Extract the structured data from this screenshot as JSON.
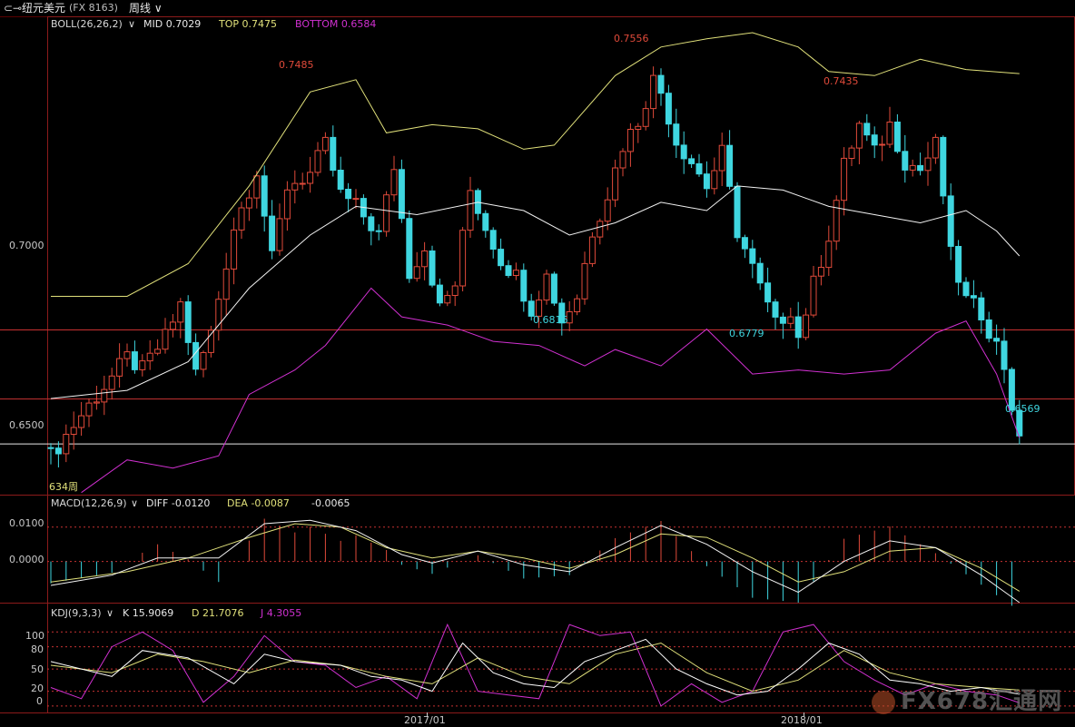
{
  "header": {
    "back_icon": "back-arrow-icon",
    "instrument": "纽元美元",
    "code": "(FX 8163)",
    "period": "周线",
    "chevron_icon": "chevron-down-icon"
  },
  "colors": {
    "background": "#000000",
    "up": "#e04a3a",
    "down": "#3fd6e0",
    "mid_line": "#f2f2f2",
    "top_line": "#e0e07a",
    "bottom_line": "#d030d0",
    "grid_red": "#c83232",
    "k_line": "#ffffff",
    "d_line": "#e0e07a",
    "j_line": "#d030d0"
  },
  "boll_legend": {
    "name": "BOLL(26,26,2)",
    "mid": "MID 0.7029",
    "top": "TOP 0.7475",
    "bottom": "BOTTOM 0.6584"
  },
  "macd_legend": {
    "name": "MACD(12,26,9)",
    "diff": "DIFF -0.0120",
    "dea": "DEA -0.0087",
    "macd": "-0.0065"
  },
  "kdj_legend": {
    "name": "KDJ(9,3,3)",
    "k": "K 15.9069",
    "d": "D 21.7076",
    "j": "J 4.3055"
  },
  "price_ticks": [
    "0.7000",
    "0.6500"
  ],
  "macd_ticks": [
    "0.0100",
    "0.0000"
  ],
  "kdj_ticks": [
    "100",
    "80",
    "50",
    "20",
    "0"
  ],
  "time_ticks": [
    "2017/01",
    "2018/01"
  ],
  "annotations": [
    {
      "text": "0.7485",
      "kind": "high"
    },
    {
      "text": "0.7556",
      "kind": "high"
    },
    {
      "text": "0.7435",
      "kind": "high"
    },
    {
      "text": "0.6816",
      "kind": "low"
    },
    {
      "text": "0.6779",
      "kind": "low"
    },
    {
      "text": "0.6569",
      "kind": "low"
    }
  ],
  "corner_label": "634周",
  "watermark": "FX678汇通网",
  "chart_data": {
    "type": "candlestick",
    "series_count": 128,
    "ylim": [
      0.6445,
      0.7615
    ],
    "horizontal_levels": [
      0.6848,
      0.6679,
      0.6569
    ],
    "close_path": [
      [
        0,
        0.654
      ],
      [
        4,
        0.664
      ],
      [
        10,
        0.678
      ],
      [
        12,
        0.675
      ],
      [
        15,
        0.683
      ],
      [
        17,
        0.691
      ],
      [
        19,
        0.674
      ],
      [
        21,
        0.684
      ],
      [
        24,
        0.71
      ],
      [
        27,
        0.724
      ],
      [
        29,
        0.702
      ],
      [
        31,
        0.72
      ],
      [
        34,
        0.723
      ],
      [
        36,
        0.73
      ],
      [
        38,
        0.718
      ],
      [
        40,
        0.715
      ],
      [
        43,
        0.708
      ],
      [
        45,
        0.725
      ],
      [
        47,
        0.699
      ],
      [
        49,
        0.705
      ],
      [
        51,
        0.69
      ],
      [
        53,
        0.696
      ],
      [
        55,
        0.719
      ],
      [
        57,
        0.71
      ],
      [
        59,
        0.702
      ],
      [
        61,
        0.698
      ],
      [
        63,
        0.69
      ],
      [
        65,
        0.698
      ],
      [
        67,
        0.687
      ],
      [
        69,
        0.693
      ],
      [
        71,
        0.709
      ],
      [
        73,
        0.718
      ],
      [
        75,
        0.73
      ],
      [
        77,
        0.736
      ],
      [
        79,
        0.746
      ],
      [
        80,
        0.743
      ],
      [
        82,
        0.731
      ],
      [
        84,
        0.726
      ],
      [
        86,
        0.72
      ],
      [
        88,
        0.728
      ],
      [
        90,
        0.709
      ],
      [
        92,
        0.7
      ],
      [
        93,
        0.695
      ],
      [
        95,
        0.686
      ],
      [
        97,
        0.69
      ],
      [
        98,
        0.683
      ],
      [
        100,
        0.696
      ],
      [
        102,
        0.708
      ],
      [
        104,
        0.725
      ],
      [
        106,
        0.735
      ],
      [
        108,
        0.728
      ],
      [
        110,
        0.735
      ],
      [
        112,
        0.726
      ],
      [
        114,
        0.724
      ],
      [
        116,
        0.73
      ],
      [
        117,
        0.718
      ],
      [
        118,
        0.703
      ],
      [
        120,
        0.692
      ],
      [
        122,
        0.689
      ],
      [
        124,
        0.681
      ],
      [
        125,
        0.676
      ],
      [
        127,
        0.6569
      ]
    ],
    "mid_path": [
      [
        0,
        0.668
      ],
      [
        10,
        0.67
      ],
      [
        18,
        0.677
      ],
      [
        26,
        0.695
      ],
      [
        34,
        0.708
      ],
      [
        40,
        0.715
      ],
      [
        48,
        0.713
      ],
      [
        56,
        0.716
      ],
      [
        62,
        0.714
      ],
      [
        68,
        0.708
      ],
      [
        74,
        0.711
      ],
      [
        80,
        0.716
      ],
      [
        86,
        0.714
      ],
      [
        90,
        0.72
      ],
      [
        96,
        0.719
      ],
      [
        102,
        0.715
      ],
      [
        108,
        0.713
      ],
      [
        114,
        0.711
      ],
      [
        120,
        0.714
      ],
      [
        124,
        0.709
      ],
      [
        127,
        0.7029
      ]
    ],
    "top_path": [
      [
        0,
        0.693
      ],
      [
        10,
        0.693
      ],
      [
        18,
        0.701
      ],
      [
        26,
        0.72
      ],
      [
        34,
        0.743
      ],
      [
        40,
        0.746
      ],
      [
        44,
        0.733
      ],
      [
        50,
        0.735
      ],
      [
        56,
        0.734
      ],
      [
        62,
        0.729
      ],
      [
        66,
        0.73
      ],
      [
        74,
        0.747
      ],
      [
        80,
        0.754
      ],
      [
        86,
        0.756
      ],
      [
        92,
        0.7575
      ],
      [
        98,
        0.754
      ],
      [
        102,
        0.748
      ],
      [
        108,
        0.747
      ],
      [
        114,
        0.751
      ],
      [
        120,
        0.7485
      ],
      [
        127,
        0.7475
      ]
    ],
    "bottom_path": [
      [
        4,
        0.645
      ],
      [
        10,
        0.653
      ],
      [
        16,
        0.651
      ],
      [
        22,
        0.654
      ],
      [
        26,
        0.669
      ],
      [
        32,
        0.675
      ],
      [
        36,
        0.681
      ],
      [
        42,
        0.695
      ],
      [
        46,
        0.688
      ],
      [
        52,
        0.686
      ],
      [
        58,
        0.682
      ],
      [
        64,
        0.681
      ],
      [
        70,
        0.676
      ],
      [
        74,
        0.68
      ],
      [
        80,
        0.676
      ],
      [
        86,
        0.685
      ],
      [
        92,
        0.674
      ],
      [
        98,
        0.675
      ],
      [
        104,
        0.674
      ],
      [
        110,
        0.675
      ],
      [
        116,
        0.684
      ],
      [
        120,
        0.687
      ],
      [
        124,
        0.674
      ],
      [
        127,
        0.6584
      ]
    ],
    "macd": {
      "ylim": [
        -0.0115,
        0.0155
      ],
      "diff_path": [
        [
          0,
          -0.007
        ],
        [
          8,
          -0.004
        ],
        [
          14,
          0.001
        ],
        [
          22,
          0.001
        ],
        [
          28,
          0.011
        ],
        [
          34,
          0.012
        ],
        [
          40,
          0.009
        ],
        [
          46,
          0.002
        ],
        [
          50,
          -0.0005
        ],
        [
          56,
          0.003
        ],
        [
          62,
          -0.001
        ],
        [
          68,
          -0.003
        ],
        [
          74,
          0.004
        ],
        [
          80,
          0.0105
        ],
        [
          86,
          0.005
        ],
        [
          92,
          -0.003
        ],
        [
          98,
          -0.009
        ],
        [
          104,
          0.0
        ],
        [
          110,
          0.006
        ],
        [
          116,
          0.004
        ],
        [
          122,
          -0.004
        ],
        [
          127,
          -0.012
        ]
      ],
      "dea_path": [
        [
          0,
          -0.006
        ],
        [
          10,
          -0.003
        ],
        [
          18,
          0.001
        ],
        [
          26,
          0.007
        ],
        [
          32,
          0.011
        ],
        [
          38,
          0.01
        ],
        [
          44,
          0.004
        ],
        [
          50,
          0.001
        ],
        [
          56,
          0.003
        ],
        [
          62,
          0.001
        ],
        [
          68,
          -0.002
        ],
        [
          74,
          0.002
        ],
        [
          80,
          0.008
        ],
        [
          86,
          0.007
        ],
        [
          92,
          0.001
        ],
        [
          98,
          -0.006
        ],
        [
          104,
          -0.003
        ],
        [
          110,
          0.003
        ],
        [
          116,
          0.004
        ],
        [
          122,
          -0.002
        ],
        [
          127,
          -0.0087
        ]
      ]
    },
    "kdj": {
      "ylim": [
        -5,
        115
      ],
      "k_path": [
        [
          0,
          60
        ],
        [
          8,
          40
        ],
        [
          12,
          75
        ],
        [
          18,
          65
        ],
        [
          24,
          30
        ],
        [
          28,
          70
        ],
        [
          32,
          60
        ],
        [
          38,
          55
        ],
        [
          42,
          40
        ],
        [
          46,
          35
        ],
        [
          50,
          20
        ],
        [
          54,
          85
        ],
        [
          58,
          45
        ],
        [
          62,
          30
        ],
        [
          66,
          25
        ],
        [
          70,
          60
        ],
        [
          74,
          75
        ],
        [
          78,
          90
        ],
        [
          82,
          50
        ],
        [
          86,
          30
        ],
        [
          90,
          15
        ],
        [
          94,
          20
        ],
        [
          98,
          50
        ],
        [
          102,
          85
        ],
        [
          106,
          70
        ],
        [
          110,
          35
        ],
        [
          114,
          30
        ],
        [
          118,
          20
        ],
        [
          122,
          25
        ],
        [
          127,
          15.9
        ]
      ],
      "d_path": [
        [
          0,
          55
        ],
        [
          8,
          45
        ],
        [
          14,
          70
        ],
        [
          20,
          60
        ],
        [
          26,
          45
        ],
        [
          32,
          62
        ],
        [
          38,
          55
        ],
        [
          44,
          40
        ],
        [
          50,
          30
        ],
        [
          56,
          65
        ],
        [
          62,
          40
        ],
        [
          68,
          30
        ],
        [
          74,
          70
        ],
        [
          80,
          85
        ],
        [
          86,
          45
        ],
        [
          92,
          20
        ],
        [
          98,
          35
        ],
        [
          104,
          75
        ],
        [
          110,
          45
        ],
        [
          116,
          30
        ],
        [
          122,
          25
        ],
        [
          127,
          21.7
        ]
      ],
      "j_path": [
        [
          0,
          25
        ],
        [
          4,
          10
        ],
        [
          8,
          80
        ],
        [
          12,
          100
        ],
        [
          16,
          75
        ],
        [
          20,
          5
        ],
        [
          24,
          40
        ],
        [
          28,
          95
        ],
        [
          32,
          60
        ],
        [
          36,
          55
        ],
        [
          40,
          25
        ],
        [
          44,
          40
        ],
        [
          48,
          10
        ],
        [
          52,
          110
        ],
        [
          56,
          20
        ],
        [
          60,
          15
        ],
        [
          64,
          10
        ],
        [
          68,
          110
        ],
        [
          72,
          95
        ],
        [
          76,
          100
        ],
        [
          80,
          0
        ],
        [
          84,
          30
        ],
        [
          88,
          5
        ],
        [
          92,
          20
        ],
        [
          96,
          100
        ],
        [
          100,
          110
        ],
        [
          104,
          60
        ],
        [
          108,
          35
        ],
        [
          112,
          15
        ],
        [
          116,
          30
        ],
        [
          120,
          20
        ],
        [
          124,
          15
        ],
        [
          127,
          4.3
        ]
      ]
    }
  }
}
